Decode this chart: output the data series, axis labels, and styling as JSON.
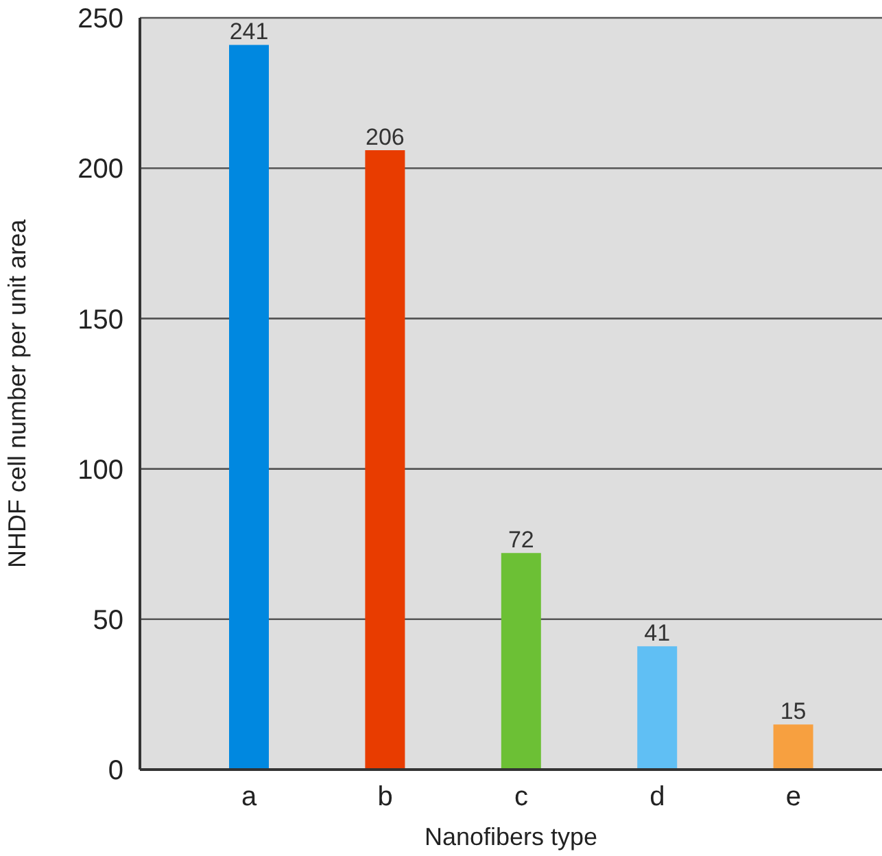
{
  "chart_data": {
    "type": "bar",
    "xlabel": "Nanofibers type",
    "ylabel": "NHDF cell number per unit area",
    "categories": [
      "a",
      "b",
      "c",
      "d",
      "e"
    ],
    "values": [
      241,
      206,
      72,
      41,
      15
    ],
    "colors": [
      "#0088e0",
      "#e83c00",
      "#6cc035",
      "#60bff4",
      "#f7a040"
    ],
    "ylim": [
      0,
      250
    ],
    "yticks": [
      0,
      50,
      100,
      150,
      200,
      250
    ],
    "grid": "y",
    "data_labels": true
  }
}
